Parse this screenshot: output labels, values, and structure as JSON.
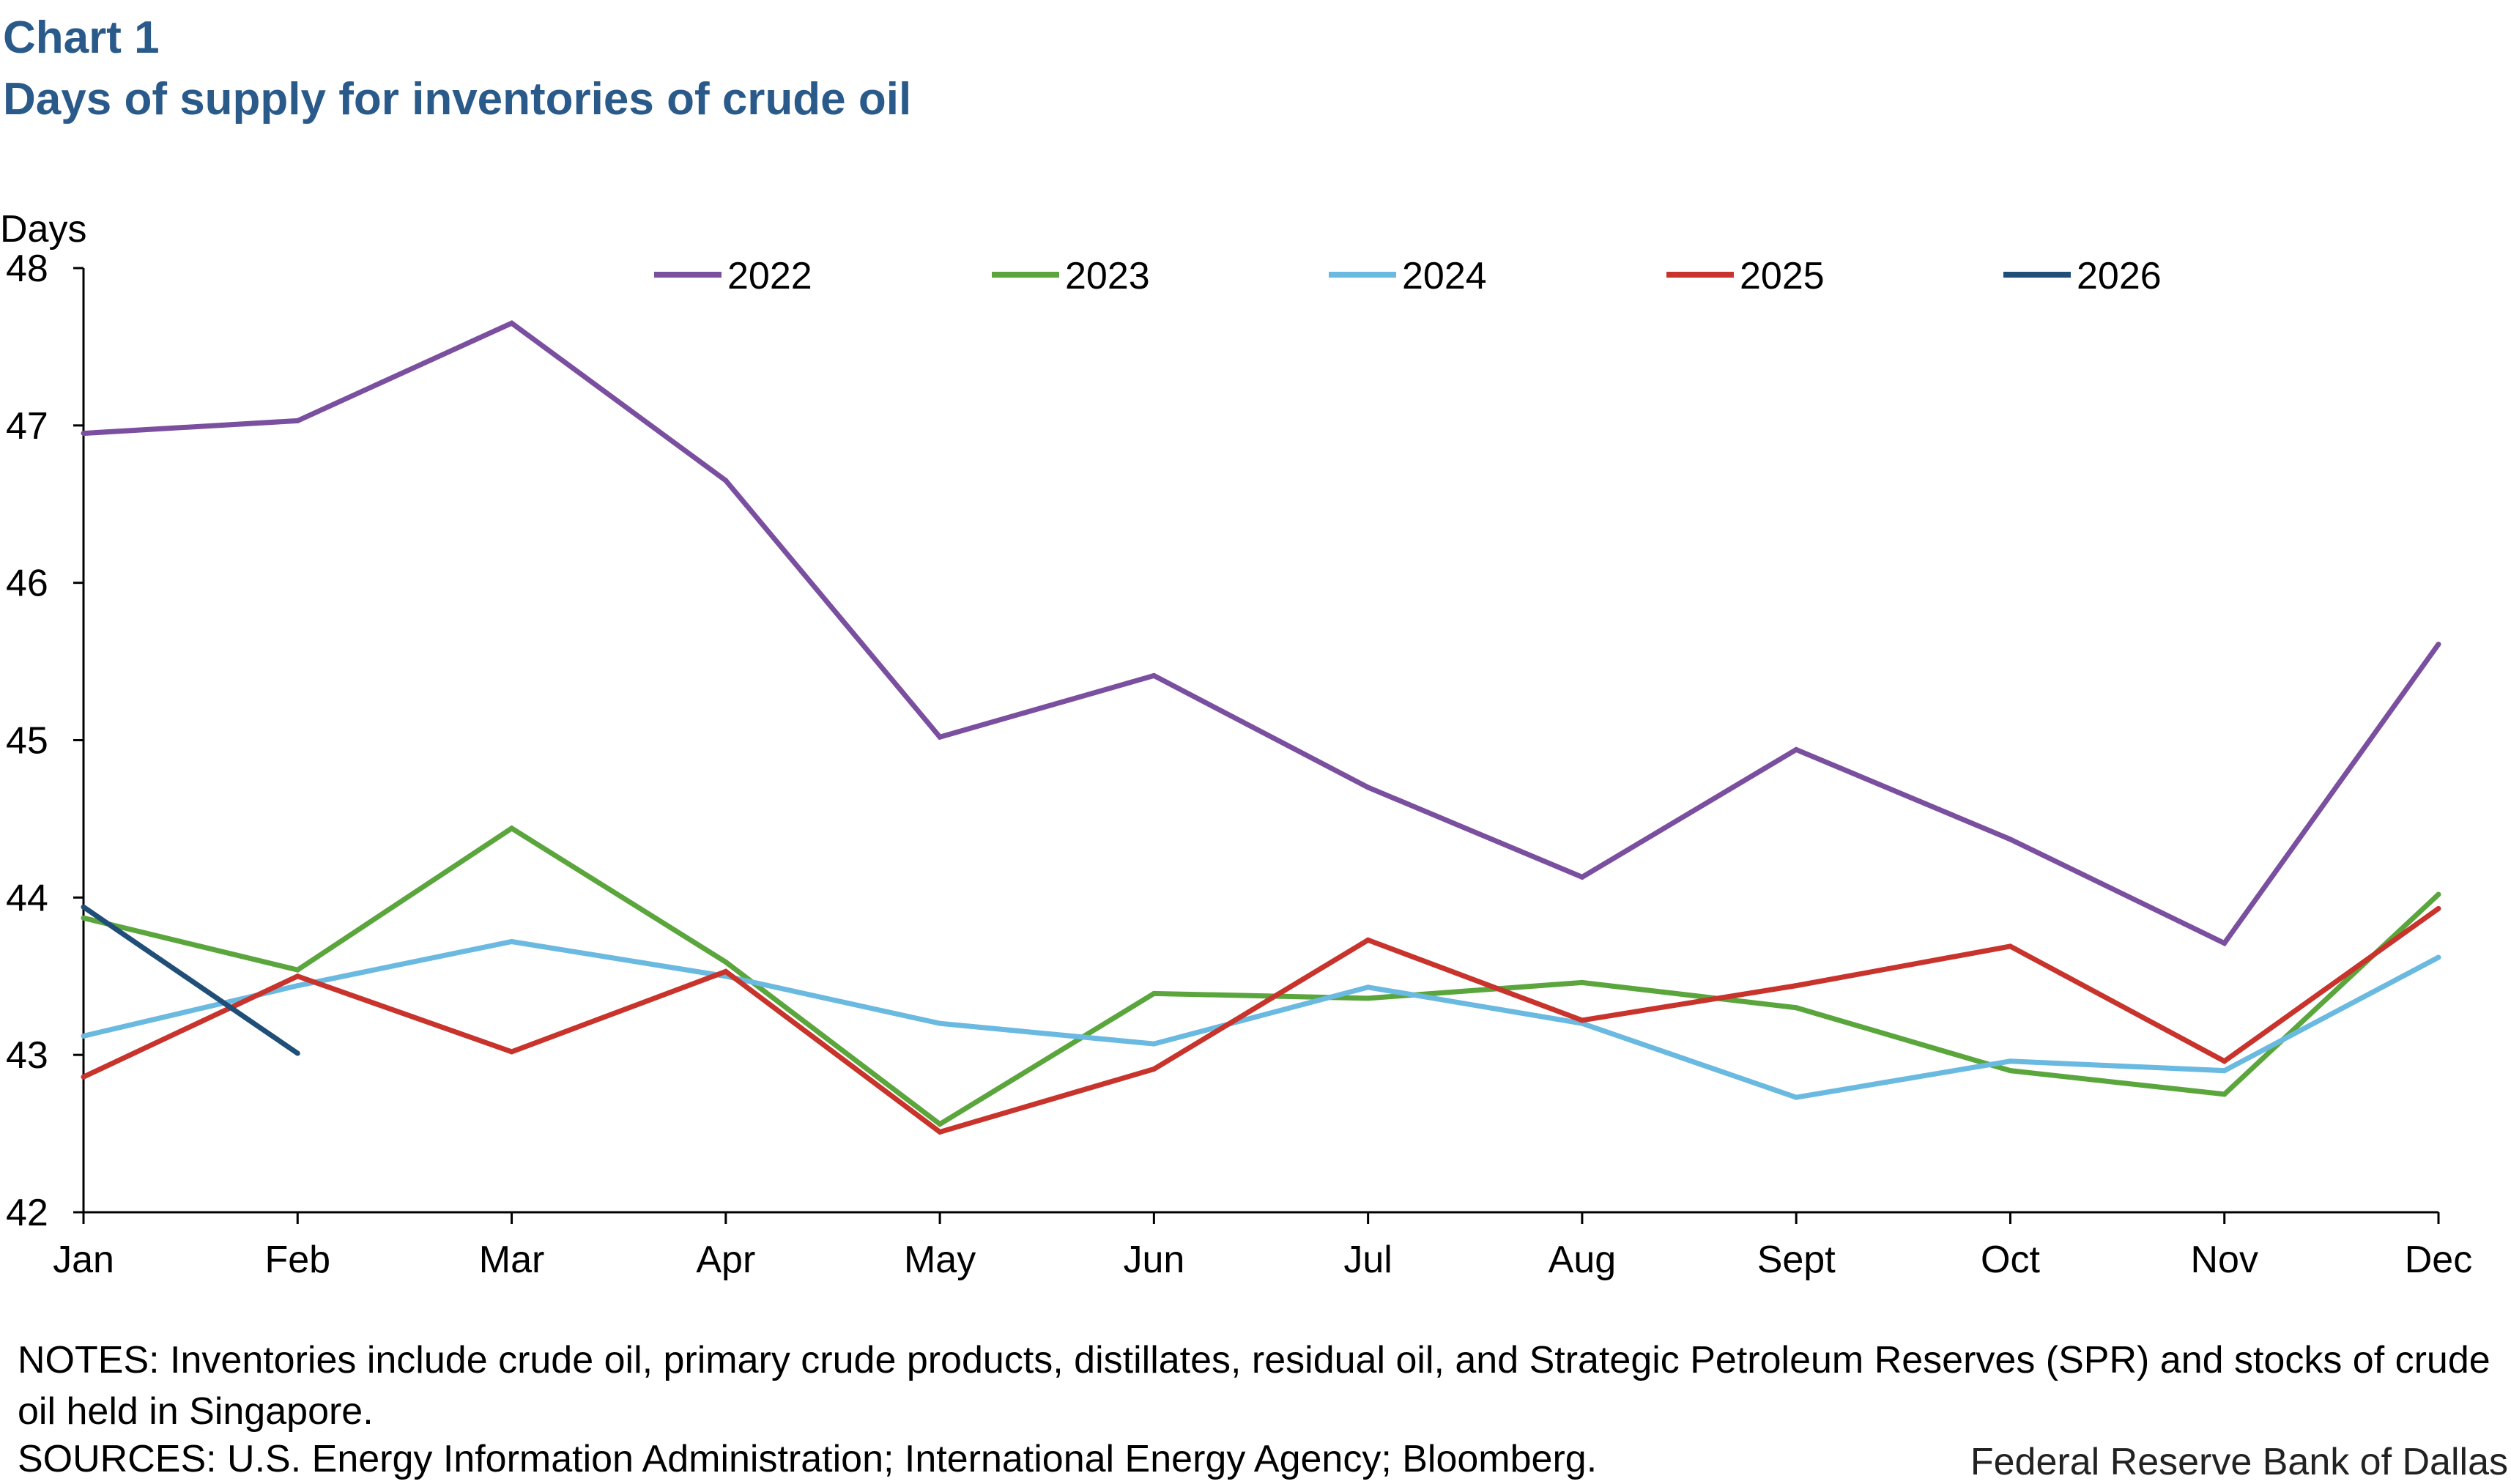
{
  "header": {
    "chart_number": "Chart 1",
    "title": "Days of supply for inventories of crude oil"
  },
  "footer": {
    "notes": "NOTES: Inventories include crude oil, primary crude products, distillates, residual oil, and Strategic Petroleum Reserves (SPR) and stocks of crude oil held in Singapore.",
    "sources": "SOURCES: U.S. Energy Information Administration; International Energy Agency; Bloomberg.",
    "credit": "Federal Reserve Bank of Dallas"
  },
  "chart_data": {
    "type": "line",
    "title": "Days of supply for inventories of crude oil",
    "ylabel": "Days",
    "xlabel": "",
    "ylim": [
      42,
      48
    ],
    "yticks": [
      42,
      43,
      44,
      45,
      46,
      47,
      48
    ],
    "grid": false,
    "legend_position": "top",
    "categories": [
      "Jan",
      "Feb",
      "Mar",
      "Apr",
      "May",
      "Jun",
      "Jul",
      "Aug",
      "Sept",
      "Oct",
      "Nov",
      "Dec"
    ],
    "series": [
      {
        "name": "2022",
        "color": "#7b4fa0",
        "values": [
          46.95,
          47.03,
          47.65,
          46.65,
          45.02,
          45.41,
          44.7,
          44.13,
          44.94,
          44.37,
          43.71,
          45.61
        ]
      },
      {
        "name": "2023",
        "color": "#5aa63c",
        "values": [
          43.87,
          43.54,
          44.44,
          43.59,
          42.56,
          43.39,
          43.36,
          43.46,
          43.3,
          42.9,
          42.75,
          44.02
        ]
      },
      {
        "name": "2024",
        "color": "#6ab9e0",
        "values": [
          43.12,
          43.44,
          43.72,
          43.5,
          43.2,
          43.07,
          43.43,
          43.2,
          42.73,
          42.96,
          42.9,
          43.62
        ]
      },
      {
        "name": "2025",
        "color": "#c8332c",
        "values": [
          42.86,
          43.5,
          43.02,
          43.53,
          42.51,
          42.91,
          43.73,
          43.22,
          43.44,
          43.69,
          42.96,
          43.93
        ]
      },
      {
        "name": "2026",
        "color": "#1f4e79",
        "values": [
          43.94,
          43.01,
          null,
          null,
          null,
          null,
          null,
          null,
          null,
          null,
          null,
          null
        ]
      }
    ]
  }
}
